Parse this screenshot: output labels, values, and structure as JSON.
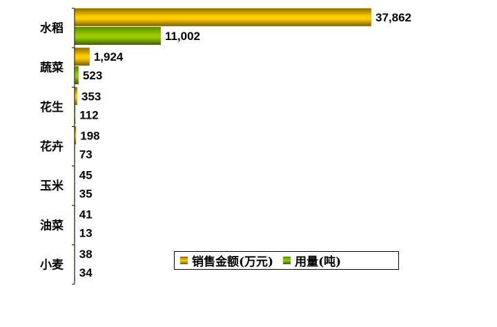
{
  "chart_data": {
    "type": "bar",
    "orientation": "horizontal",
    "categories": [
      "水稻",
      "蔬菜",
      "花生",
      "花卉",
      "玉米",
      "油菜",
      "小麦"
    ],
    "series": [
      {
        "name": "销售金额(万元)",
        "values": [
          37862,
          1924,
          353,
          198,
          45,
          41,
          38
        ],
        "labels": [
          "37,862",
          "1,924",
          "353",
          "198",
          "45",
          "41",
          "38"
        ],
        "color": "#e8b800"
      },
      {
        "name": "用量(吨)",
        "values": [
          11002,
          523,
          112,
          73,
          35,
          13,
          34
        ],
        "labels": [
          "11,002",
          "523",
          "112",
          "73",
          "35",
          "13",
          "34"
        ],
        "color": "#7fb000"
      }
    ],
    "xlim": [
      0,
      37862
    ],
    "grid": false,
    "legend": "bottom-center"
  }
}
